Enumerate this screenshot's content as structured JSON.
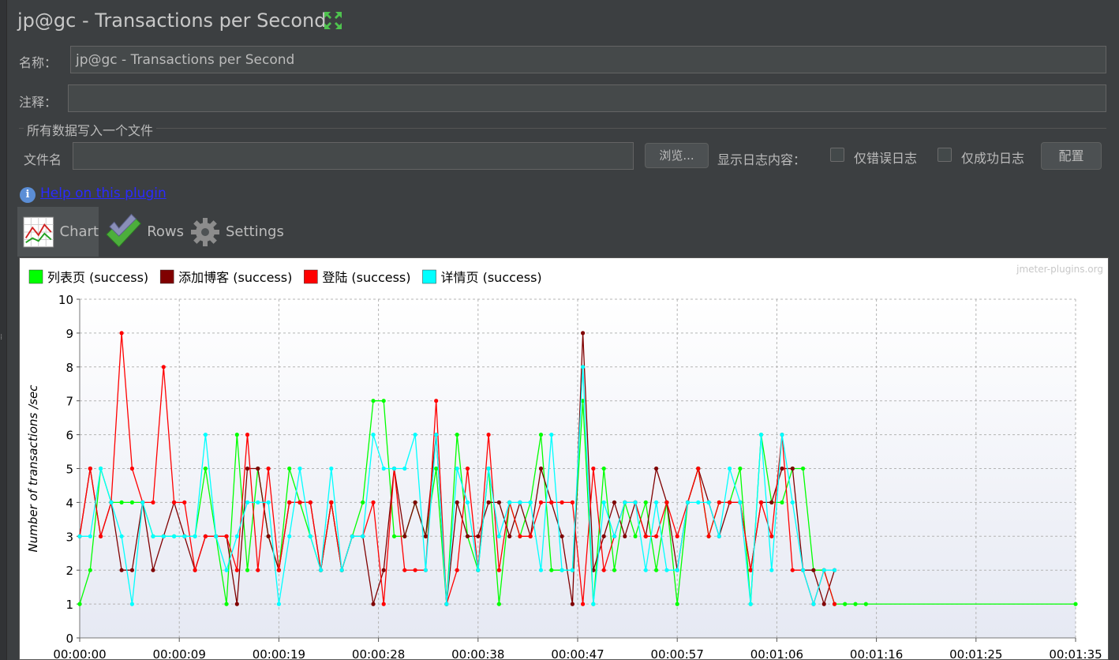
{
  "window": {
    "title": "jp@gc - Transactions per Second"
  },
  "form": {
    "name_label": "名称：",
    "name_value": "jp@gc - Transactions per Second",
    "comment_label": "注释：",
    "comment_value": "",
    "file_group_title": "所有数据写入一个文件",
    "filename_label": "文件名",
    "filename_value": "",
    "browse_label": "浏览...",
    "log_content_label": "显示日志内容：",
    "errors_only_label": "仅错误日志",
    "errors_only_checked": false,
    "success_only_label": "仅成功日志",
    "success_only_checked": false,
    "configure_label": "配置"
  },
  "help": {
    "link_text": "Help on this plugin"
  },
  "tabs": [
    {
      "label": "Chart",
      "icon": "chart-icon",
      "active": true
    },
    {
      "label": "Rows",
      "icon": "checkmark-icon",
      "active": false
    },
    {
      "label": "Settings",
      "icon": "gear-icon",
      "active": false
    }
  ],
  "chart_data": {
    "type": "line",
    "watermark": "jmeter-plugins.org",
    "ylabel": "Number of transactions /sec",
    "xlabel": "",
    "ylim": [
      0,
      10
    ],
    "y_ticks": [
      "0",
      "1",
      "2",
      "3",
      "4",
      "5",
      "6",
      "7",
      "8",
      "9",
      "10"
    ],
    "x_tick_labels": [
      "00:00:00",
      "00:00:09",
      "00:00:19",
      "00:00:28",
      "00:00:38",
      "00:00:47",
      "00:00:57",
      "00:01:06",
      "00:01:16",
      "00:01:25",
      "00:01:35"
    ],
    "x_tick_seconds": [
      0,
      9.5,
      19,
      28.5,
      38,
      47.5,
      57,
      66.5,
      76,
      85.5,
      95
    ],
    "xlim_seconds": [
      0,
      95
    ],
    "grid": true,
    "legend_position": "top-left",
    "series": [
      {
        "name": "列表页 (success)",
        "color": "#00ff00",
        "x": [
          0,
          1,
          2,
          3,
          4,
          5,
          6,
          7,
          8,
          9,
          10,
          11,
          12,
          13,
          14,
          15,
          16,
          17,
          18,
          19,
          20,
          21,
          22,
          23,
          24,
          25,
          26,
          27,
          28,
          29,
          30,
          31,
          32,
          33,
          34,
          35,
          36,
          37,
          38,
          39,
          40,
          41,
          42,
          43,
          44,
          45,
          46,
          47,
          48,
          49,
          50,
          51,
          52,
          53,
          54,
          55,
          56,
          57,
          58,
          59,
          60,
          61,
          62,
          63,
          64,
          65,
          66,
          67,
          68,
          69,
          70,
          71,
          72,
          73,
          74,
          75,
          95
        ],
        "y": [
          1,
          2,
          5,
          4,
          4,
          4,
          4,
          3,
          3,
          3,
          3,
          3,
          5,
          3,
          1,
          6,
          2,
          5,
          3,
          2,
          5,
          4,
          3,
          2,
          4,
          2,
          3,
          4,
          7,
          7,
          3,
          3,
          4,
          3,
          5,
          1,
          6,
          3,
          2,
          5,
          1,
          4,
          3,
          4,
          6,
          2,
          2,
          2,
          7,
          1,
          5,
          2,
          4,
          3,
          4,
          2,
          4,
          1,
          4,
          5,
          3,
          4,
          4,
          5,
          1,
          6,
          4,
          4,
          5,
          5,
          2,
          2,
          1,
          1,
          1,
          1,
          1
        ]
      },
      {
        "name": "添加博客 (success)",
        "color": "#800000",
        "x": [
          0,
          1,
          2,
          3,
          4,
          5,
          6,
          7,
          8,
          9,
          10,
          11,
          12,
          13,
          14,
          15,
          16,
          17,
          18,
          19,
          20,
          21,
          22,
          23,
          24,
          25,
          26,
          27,
          28,
          29,
          30,
          31,
          32,
          33,
          34,
          35,
          36,
          37,
          38,
          39,
          40,
          41,
          42,
          43,
          44,
          45,
          46,
          47,
          48,
          49,
          50,
          51,
          52,
          53,
          54,
          55,
          56,
          57,
          58,
          59,
          60,
          61,
          62,
          63,
          64,
          65,
          66,
          67,
          68,
          69,
          70,
          71,
          72
        ],
        "y": [
          3,
          5,
          3,
          4,
          2,
          2,
          4,
          2,
          3,
          4,
          3,
          2,
          3,
          3,
          3,
          1,
          5,
          5,
          3,
          2,
          4,
          4,
          4,
          2,
          4,
          2,
          3,
          3,
          1,
          2,
          5,
          3,
          4,
          3,
          6,
          1,
          4,
          3,
          3,
          4,
          4,
          3,
          4,
          3,
          5,
          4,
          3,
          1,
          9,
          2,
          3,
          4,
          3,
          4,
          3,
          5,
          4,
          2,
          4,
          5,
          4,
          3,
          4,
          4,
          2,
          4,
          4,
          5,
          5,
          2,
          2,
          1,
          2
        ]
      },
      {
        "name": "登陆 (success)",
        "color": "#ff0000",
        "x": [
          0,
          1,
          2,
          3,
          4,
          5,
          6,
          7,
          8,
          9,
          10,
          11,
          12,
          13,
          14,
          15,
          16,
          17,
          18,
          19,
          20,
          21,
          22,
          23,
          24,
          25,
          26,
          27,
          28,
          29,
          30,
          31,
          32,
          33,
          34,
          35,
          36,
          37,
          38,
          39,
          40,
          41,
          42,
          43,
          44,
          45,
          46,
          47,
          48,
          49,
          50,
          51,
          52,
          53,
          54,
          55,
          56,
          57,
          58,
          59,
          60,
          61,
          62,
          63,
          64,
          65,
          66,
          67,
          68,
          69,
          70,
          71,
          72
        ],
        "y": [
          3,
          5,
          3,
          4,
          9,
          5,
          4,
          4,
          8,
          4,
          4,
          2,
          3,
          3,
          3,
          2,
          6,
          2,
          5,
          2,
          4,
          4,
          4,
          2,
          4,
          2,
          3,
          3,
          4,
          1,
          5,
          2,
          2,
          2,
          7,
          1,
          2,
          5,
          2,
          6,
          2,
          4,
          3,
          3,
          4,
          4,
          4,
          4,
          1,
          5,
          2,
          3,
          4,
          4,
          3,
          3,
          4,
          3,
          4,
          5,
          3,
          4,
          4,
          4,
          2,
          4,
          3,
          6,
          2,
          2,
          1,
          2,
          1
        ]
      },
      {
        "name": "详情页 (success)",
        "color": "#00ffff",
        "x": [
          0,
          1,
          2,
          3,
          4,
          5,
          6,
          7,
          8,
          9,
          10,
          11,
          12,
          13,
          14,
          15,
          16,
          17,
          18,
          19,
          20,
          21,
          22,
          23,
          24,
          25,
          26,
          27,
          28,
          29,
          30,
          31,
          32,
          33,
          34,
          35,
          36,
          37,
          38,
          39,
          40,
          41,
          42,
          43,
          44,
          45,
          46,
          47,
          48,
          49,
          50,
          51,
          52,
          53,
          54,
          55,
          56,
          57,
          58,
          59,
          60,
          61,
          62,
          63,
          64,
          65,
          66,
          67,
          68,
          69,
          70,
          71,
          72
        ],
        "y": [
          3,
          3,
          5,
          4,
          3,
          1,
          4,
          3,
          3,
          3,
          3,
          3,
          6,
          3,
          2,
          3,
          4,
          4,
          4,
          1,
          3,
          5,
          3,
          2,
          5,
          2,
          3,
          3,
          6,
          5,
          5,
          5,
          6,
          2,
          6,
          1,
          5,
          4,
          2,
          5,
          3,
          4,
          4,
          4,
          2,
          6,
          2,
          2,
          8,
          1,
          4,
          3,
          4,
          4,
          2,
          4,
          2,
          2,
          4,
          4,
          4,
          3,
          5,
          4,
          1,
          6,
          2,
          6,
          4,
          2,
          1,
          2,
          2
        ]
      }
    ]
  }
}
